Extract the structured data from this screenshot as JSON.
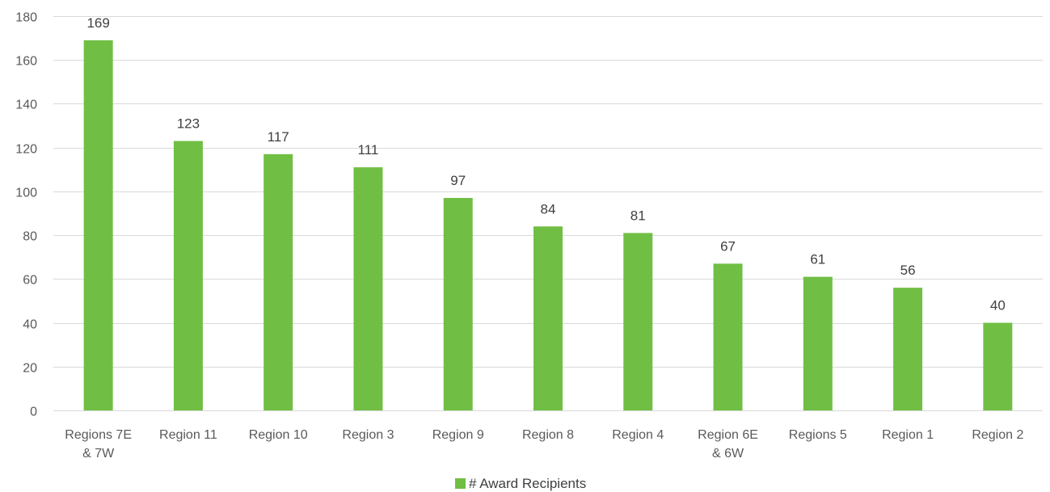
{
  "chart_data": {
    "type": "bar",
    "title": "",
    "xlabel": "",
    "ylabel": "",
    "categories": [
      [
        "Regions 7E",
        "& 7W"
      ],
      [
        "Region 11"
      ],
      [
        "Region 10"
      ],
      [
        "Region 3"
      ],
      [
        "Region 9"
      ],
      [
        "Region 8"
      ],
      [
        "Region 4"
      ],
      [
        "Region 6E",
        "& 6W"
      ],
      [
        "Regions 5"
      ],
      [
        "Region 1"
      ],
      [
        "Region 2"
      ]
    ],
    "series": [
      {
        "name": "# Award Recipients",
        "color": "#70bf44",
        "values": [
          169,
          123,
          117,
          111,
          97,
          84,
          81,
          67,
          61,
          56,
          40
        ]
      }
    ],
    "ylim": [
      0,
      180
    ],
    "yticks": [
      0,
      20,
      40,
      60,
      80,
      100,
      120,
      140,
      160,
      180
    ],
    "grid": true,
    "gridColor": "#d9d9d9",
    "data_labels": true,
    "legend": "bottom-center"
  }
}
